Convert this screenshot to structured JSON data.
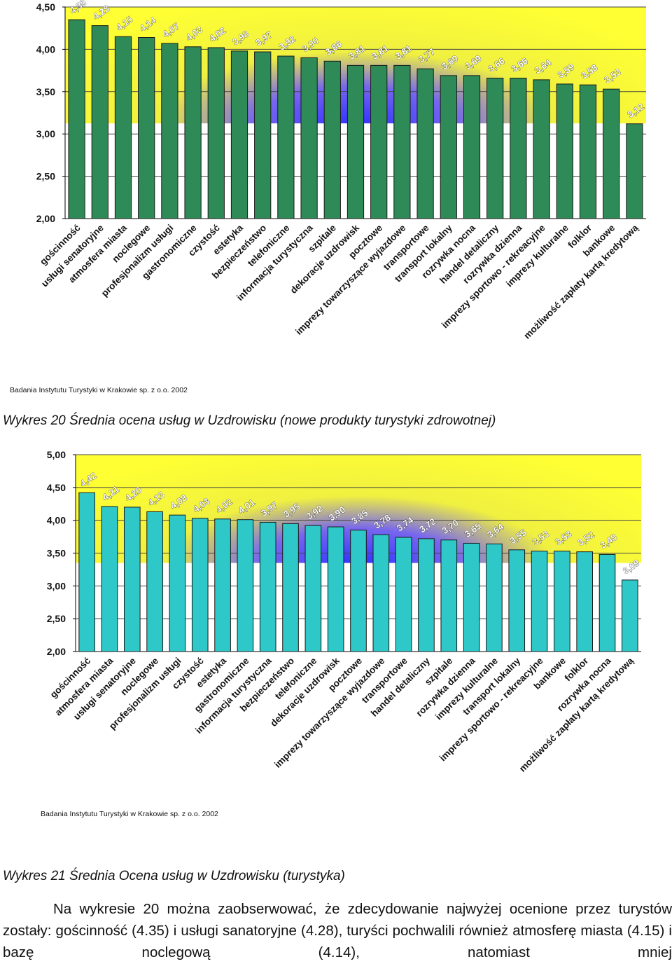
{
  "charts": {
    "colors": {
      "bar1": "#2e8b57",
      "bar2": "#2ec8c8",
      "bg_yellow": "#ffff33",
      "bg_blue": "#3333ff",
      "gridline": "#444444"
    }
  },
  "chart_data": [
    {
      "type": "bar",
      "title": "Wykres 20 Średnia ocena usług w Uzdrowisku (nowe produkty turystyki zdrowotnej)",
      "source": "Badania Instytutu Turystyki w Krakowie sp. z o.o. 2002",
      "ylim": [
        2.0,
        4.5
      ],
      "yticks": [
        "2,00",
        "2,50",
        "3,00",
        "3,50",
        "4,00",
        "4,50"
      ],
      "grid": true,
      "categories": [
        "gościnność",
        "usługi senatoryjne",
        "atmosfera miasta",
        "noclegowe",
        "profesjonalizm usługi",
        "gastronomiczne",
        "czystość",
        "estetyka",
        "bezpieczeństwo",
        "telefoniczne",
        "informacja turystyczna",
        "szpitale",
        "dekoracje uzdrowisk",
        "pocztowe",
        "imprezy towarzyszące wyjazdowe",
        "transportowe",
        "transport lokalny",
        "rozrywka nocna",
        "handel detaliczny",
        "rozrywka dzienna",
        "imprezy sportowo - rekreacyjne",
        "imprezy kulturalne",
        "folklor",
        "bankowe",
        "możliwość zapłaty kartą kredytową"
      ],
      "values": [
        4.35,
        4.28,
        4.15,
        4.14,
        4.07,
        4.03,
        4.02,
        3.98,
        3.97,
        3.92,
        3.9,
        3.86,
        3.81,
        3.81,
        3.81,
        3.77,
        3.69,
        3.69,
        3.66,
        3.66,
        3.64,
        3.59,
        3.58,
        3.53,
        3.12
      ],
      "value_labels": [
        "4,35",
        "4,28",
        "4,15",
        "4,14",
        "4,07",
        "4,03",
        "4,02",
        "3,98",
        "3,97",
        "3,92",
        "3,90",
        "3,86",
        "3,81",
        "3,81",
        "3,81",
        "3,77",
        "3,69",
        "3,69",
        "3,66",
        "3,66",
        "3,64",
        "3,59",
        "3,58",
        "3,53",
        "3,12"
      ]
    },
    {
      "type": "bar",
      "title": "Wykres 21 Średnia Ocena usług w Uzdrowisku (turystyka)",
      "source": "Badania Instytutu Turystyki w Krakowie sp. z o.o. 2002",
      "ylim": [
        2.0,
        5.0
      ],
      "yticks": [
        "2,00",
        "2,50",
        "3,00",
        "3,50",
        "4,00",
        "4,50",
        "5,00"
      ],
      "grid": true,
      "categories": [
        "gościnność",
        "atmosfera miasta",
        "usługi senatoryjne",
        "noclegowe",
        "profesjonalizm usługi",
        "czystość",
        "estetyka",
        "gastronomiczne",
        "informacja turystyczna",
        "bezpieczeństwo",
        "telefoniczne",
        "dekoracje uzdrowisk",
        "pocztowe",
        "imprezy towarzyszące wyjazdowe",
        "transportowe",
        "handel detaliczny",
        "szpitale",
        "rozrywka dzienna",
        "imprezy kulturalne",
        "transport lokalny",
        "imprezy sportowo - rekreacyjne",
        "bankowe",
        "folklor",
        "rozrywka nocna",
        "możliwość zapłaty kartą kredytową"
      ],
      "values": [
        4.42,
        4.21,
        4.2,
        4.13,
        4.08,
        4.03,
        4.02,
        4.01,
        3.97,
        3.95,
        3.92,
        3.9,
        3.85,
        3.78,
        3.74,
        3.72,
        3.7,
        3.65,
        3.64,
        3.55,
        3.53,
        3.53,
        3.52,
        3.48,
        3.09
      ],
      "value_labels": [
        "4,42",
        "4,21",
        "4,20",
        "4,13",
        "4,08",
        "4,03",
        "4,02",
        "4,01",
        "3,97",
        "3,95",
        "3,92",
        "3,90",
        "3,85",
        "3,78",
        "3,74",
        "3,72",
        "3,70",
        "3,65",
        "3,64",
        "3,55",
        "3,53",
        "3,53",
        "3,52",
        "3,48",
        "3,09"
      ]
    }
  ],
  "text": {
    "caption1": "Wykres 20 Średnia ocena usług w Uzdrowisku (nowe produkty turystyki zdrowotnej)",
    "caption2": "Wykres 21 Średnia Ocena usług w Uzdrowisku (turystyka)",
    "paragraph": "Na wykresie 20 można zaobserwować, że zdecydowanie najwyżej ocenione przez turystów zostały: gościnność (4.35) i usługi sanatoryjne (4.28), turyści pochwalili również atmosferę miasta (4.15) i bazę noclegową (4.14), natomiast mniej"
  }
}
